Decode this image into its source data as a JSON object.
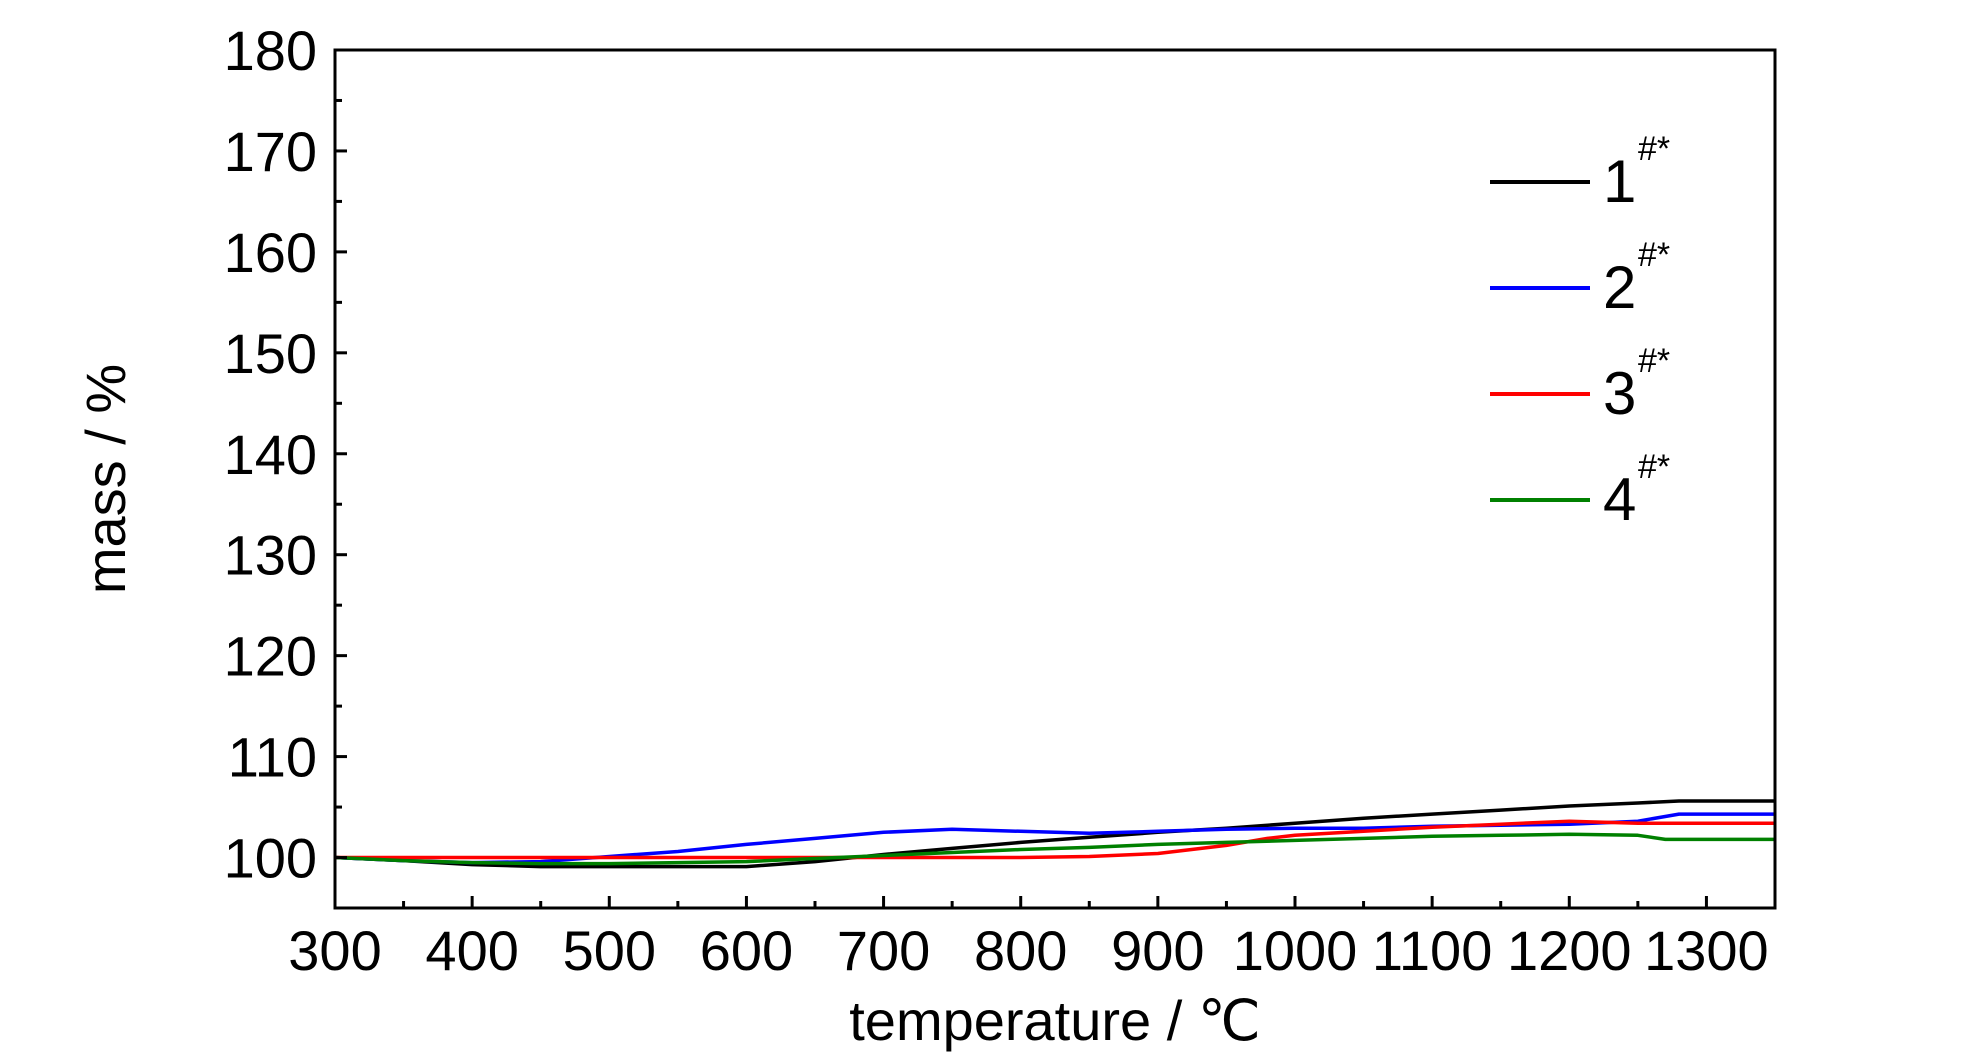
{
  "chart_data": {
    "type": "line",
    "title": "",
    "xlabel": "temperature / ℃",
    "ylabel": "mass / %",
    "xlim": [
      300,
      1350
    ],
    "ylim": [
      95,
      180
    ],
    "x_ticks": [
      300,
      400,
      500,
      600,
      700,
      800,
      900,
      1000,
      1100,
      1200,
      1300
    ],
    "y_ticks": [
      100,
      110,
      120,
      130,
      140,
      150,
      160,
      170,
      180
    ],
    "grid": false,
    "legend_position": "top-right",
    "series": [
      {
        "name": "1",
        "name_sup": "#*",
        "color": "#000000",
        "x": [
          300,
          350,
          400,
          450,
          500,
          550,
          600,
          650,
          700,
          750,
          800,
          850,
          900,
          950,
          1000,
          1050,
          1100,
          1150,
          1200,
          1250,
          1280,
          1350
        ],
        "y": [
          100.0,
          99.7,
          99.3,
          99.1,
          99.1,
          99.1,
          99.1,
          99.6,
          100.3,
          100.9,
          101.5,
          102.0,
          102.5,
          102.9,
          103.4,
          103.9,
          104.3,
          104.7,
          105.1,
          105.4,
          105.6,
          105.6
        ]
      },
      {
        "name": "2",
        "name_sup": "#*",
        "color": "#0000ff",
        "x": [
          300,
          350,
          400,
          450,
          500,
          550,
          600,
          650,
          700,
          750,
          800,
          850,
          900,
          950,
          1000,
          1050,
          1100,
          1150,
          1200,
          1250,
          1280,
          1350
        ],
        "y": [
          100.0,
          99.7,
          99.5,
          99.6,
          100.1,
          100.6,
          101.3,
          101.9,
          102.5,
          102.8,
          102.6,
          102.4,
          102.6,
          102.8,
          102.9,
          102.9,
          103.1,
          103.2,
          103.3,
          103.6,
          104.3,
          104.3
        ]
      },
      {
        "name": "3",
        "name_sup": "#*",
        "color": "#ff0000",
        "x": [
          300,
          350,
          400,
          450,
          500,
          550,
          600,
          650,
          700,
          750,
          800,
          850,
          900,
          950,
          980,
          1000,
          1050,
          1100,
          1150,
          1200,
          1250,
          1300,
          1350
        ],
        "y": [
          100.0,
          100.0,
          100.0,
          100.0,
          100.0,
          100.0,
          100.0,
          100.0,
          100.0,
          100.0,
          100.0,
          100.1,
          100.4,
          101.2,
          101.9,
          102.2,
          102.6,
          103.0,
          103.3,
          103.6,
          103.4,
          103.4,
          103.4
        ]
      },
      {
        "name": "4",
        "name_sup": "#*",
        "color": "#008000",
        "x": [
          300,
          350,
          400,
          450,
          500,
          550,
          600,
          650,
          700,
          750,
          800,
          850,
          900,
          950,
          1000,
          1050,
          1100,
          1150,
          1200,
          1250,
          1270,
          1300,
          1350
        ],
        "y": [
          100.0,
          99.7,
          99.5,
          99.4,
          99.4,
          99.5,
          99.6,
          99.9,
          100.2,
          100.5,
          100.8,
          101.0,
          101.3,
          101.5,
          101.7,
          101.9,
          102.1,
          102.2,
          102.3,
          102.2,
          101.8,
          101.8,
          101.8
        ]
      }
    ]
  }
}
